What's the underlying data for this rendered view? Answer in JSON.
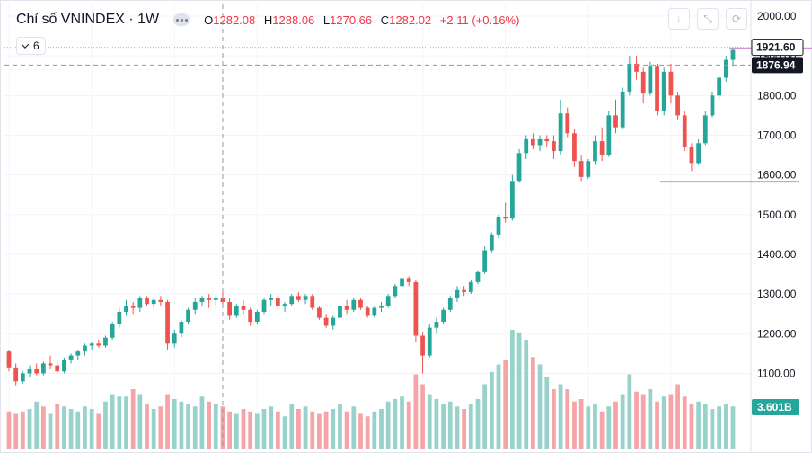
{
  "header": {
    "title": "Chỉ số VNINDEX · 1W",
    "ohlc": [
      {
        "label": "O",
        "value": "1282.08"
      },
      {
        "label": "H",
        "value": "1288.06"
      },
      {
        "label": "L",
        "value": "1270.66"
      },
      {
        "label": "C",
        "value": "1282.02"
      }
    ],
    "change": "+2.11 (+0.16%)",
    "indicator_count": "6",
    "tools": [
      {
        "name": "download-icon",
        "glyph": "↓"
      },
      {
        "name": "fullscreen-icon",
        "glyph": "⤡"
      },
      {
        "name": "refresh-icon",
        "glyph": "⟳"
      }
    ]
  },
  "colors": {
    "up": "#26a69a",
    "down": "#ef5350",
    "volume_up": "#99d2ca",
    "volume_down": "#f5a5a8",
    "annotation": "#ce93d8",
    "last_price_bg": "#131722",
    "resistance_bg": "#ffffff",
    "volume_label_bg": "#26a69a"
  },
  "chart_data": {
    "type": "candlestick",
    "y_ticks": [
      1100,
      1200,
      1300,
      1400,
      1500,
      1600,
      1700,
      1800,
      1900,
      2000
    ],
    "y_tick_labels": [
      "1100.00",
      "1200.00",
      "1300.00",
      "1400.00",
      "1500.00",
      "1600.00",
      "1700.00",
      "1800.00",
      "1900.00",
      "2000.00"
    ],
    "ylim": [
      1025,
      2010
    ],
    "price_labels": [
      {
        "text": "1921.60",
        "value": 1921.6,
        "style": "resistance"
      },
      {
        "text": "1876.94",
        "value": 1876.94,
        "style": "last"
      }
    ],
    "volume_label": "3.601B",
    "horizontal_levels": [
      {
        "value": 1919,
        "from": 105,
        "to": 116
      },
      {
        "value": 1583,
        "from": 95,
        "to": 114
      }
    ],
    "crosshair": {
      "x_index": 31,
      "y_value": 1876.94
    },
    "candles": [
      [
        1155,
        1160,
        1105,
        1115
      ],
      [
        1115,
        1125,
        1070,
        1080
      ],
      [
        1080,
        1105,
        1075,
        1100
      ],
      [
        1100,
        1120,
        1090,
        1110
      ],
      [
        1110,
        1125,
        1095,
        1100
      ],
      [
        1100,
        1130,
        1095,
        1125
      ],
      [
        1125,
        1145,
        1110,
        1120
      ],
      [
        1120,
        1130,
        1100,
        1105
      ],
      [
        1105,
        1140,
        1100,
        1135
      ],
      [
        1135,
        1150,
        1125,
        1145
      ],
      [
        1145,
        1160,
        1135,
        1155
      ],
      [
        1155,
        1175,
        1145,
        1170
      ],
      [
        1170,
        1180,
        1160,
        1175
      ],
      [
        1175,
        1185,
        1165,
        1170
      ],
      [
        1170,
        1195,
        1165,
        1190
      ],
      [
        1190,
        1230,
        1185,
        1225
      ],
      [
        1225,
        1265,
        1215,
        1255
      ],
      [
        1255,
        1285,
        1245,
        1270
      ],
      [
        1270,
        1280,
        1250,
        1265
      ],
      [
        1265,
        1295,
        1255,
        1290
      ],
      [
        1290,
        1295,
        1270,
        1275
      ],
      [
        1275,
        1290,
        1265,
        1285
      ],
      [
        1285,
        1295,
        1270,
        1280
      ],
      [
        1280,
        1285,
        1160,
        1175
      ],
      [
        1175,
        1210,
        1165,
        1200
      ],
      [
        1200,
        1235,
        1190,
        1230
      ],
      [
        1230,
        1265,
        1225,
        1260
      ],
      [
        1260,
        1290,
        1250,
        1280
      ],
      [
        1280,
        1295,
        1270,
        1290
      ],
      [
        1290,
        1300,
        1265,
        1285
      ],
      [
        1285,
        1295,
        1270,
        1290
      ],
      [
        1290,
        1305,
        1275,
        1280
      ],
      [
        1280,
        1290,
        1235,
        1245
      ],
      [
        1245,
        1275,
        1240,
        1270
      ],
      [
        1270,
        1285,
        1250,
        1260
      ],
      [
        1260,
        1265,
        1220,
        1230
      ],
      [
        1230,
        1260,
        1225,
        1255
      ],
      [
        1255,
        1290,
        1250,
        1285
      ],
      [
        1285,
        1300,
        1270,
        1290
      ],
      [
        1290,
        1295,
        1265,
        1270
      ],
      [
        1270,
        1280,
        1255,
        1275
      ],
      [
        1275,
        1300,
        1270,
        1295
      ],
      [
        1295,
        1305,
        1280,
        1285
      ],
      [
        1285,
        1300,
        1275,
        1295
      ],
      [
        1295,
        1300,
        1260,
        1265
      ],
      [
        1265,
        1270,
        1235,
        1240
      ],
      [
        1240,
        1250,
        1215,
        1220
      ],
      [
        1220,
        1245,
        1210,
        1240
      ],
      [
        1240,
        1275,
        1235,
        1270
      ],
      [
        1270,
        1285,
        1250,
        1260
      ],
      [
        1260,
        1290,
        1255,
        1285
      ],
      [
        1285,
        1290,
        1260,
        1265
      ],
      [
        1265,
        1270,
        1240,
        1245
      ],
      [
        1245,
        1270,
        1240,
        1265
      ],
      [
        1265,
        1280,
        1255,
        1270
      ],
      [
        1270,
        1300,
        1265,
        1295
      ],
      [
        1295,
        1325,
        1290,
        1320
      ],
      [
        1320,
        1345,
        1315,
        1340
      ],
      [
        1340,
        1345,
        1320,
        1330
      ],
      [
        1330,
        1335,
        1180,
        1195
      ],
      [
        1195,
        1205,
        1100,
        1145
      ],
      [
        1145,
        1225,
        1140,
        1215
      ],
      [
        1215,
        1240,
        1200,
        1230
      ],
      [
        1230,
        1265,
        1225,
        1260
      ],
      [
        1260,
        1295,
        1255,
        1290
      ],
      [
        1290,
        1320,
        1280,
        1310
      ],
      [
        1310,
        1320,
        1295,
        1305
      ],
      [
        1305,
        1335,
        1300,
        1330
      ],
      [
        1330,
        1360,
        1325,
        1355
      ],
      [
        1355,
        1420,
        1350,
        1410
      ],
      [
        1410,
        1455,
        1405,
        1450
      ],
      [
        1450,
        1500,
        1440,
        1495
      ],
      [
        1495,
        1530,
        1480,
        1490
      ],
      [
        1490,
        1600,
        1485,
        1585
      ],
      [
        1585,
        1665,
        1580,
        1655
      ],
      [
        1655,
        1700,
        1640,
        1690
      ],
      [
        1690,
        1705,
        1665,
        1675
      ],
      [
        1675,
        1700,
        1660,
        1690
      ],
      [
        1690,
        1700,
        1670,
        1685
      ],
      [
        1685,
        1700,
        1640,
        1660
      ],
      [
        1660,
        1790,
        1650,
        1755
      ],
      [
        1755,
        1770,
        1695,
        1705
      ],
      [
        1705,
        1715,
        1620,
        1635
      ],
      [
        1635,
        1650,
        1585,
        1595
      ],
      [
        1595,
        1640,
        1590,
        1635
      ],
      [
        1635,
        1700,
        1625,
        1685
      ],
      [
        1685,
        1720,
        1635,
        1650
      ],
      [
        1650,
        1760,
        1645,
        1750
      ],
      [
        1750,
        1790,
        1705,
        1720
      ],
      [
        1720,
        1820,
        1715,
        1810
      ],
      [
        1810,
        1900,
        1800,
        1880
      ],
      [
        1880,
        1900,
        1840,
        1860
      ],
      [
        1860,
        1870,
        1780,
        1805
      ],
      [
        1805,
        1885,
        1800,
        1875
      ],
      [
        1875,
        1880,
        1750,
        1760
      ],
      [
        1760,
        1870,
        1750,
        1860
      ],
      [
        1860,
        1880,
        1780,
        1800
      ],
      [
        1800,
        1810,
        1740,
        1750
      ],
      [
        1750,
        1760,
        1660,
        1670
      ],
      [
        1670,
        1680,
        1610,
        1630
      ],
      [
        1630,
        1690,
        1625,
        1680
      ],
      [
        1680,
        1760,
        1675,
        1750
      ],
      [
        1750,
        1810,
        1745,
        1800
      ],
      [
        1800,
        1850,
        1790,
        1845
      ],
      [
        1845,
        1900,
        1835,
        1890
      ],
      [
        1890,
        1920,
        1875,
        1915
      ]
    ],
    "volumes": [
      [
        0.75,
        0
      ],
      [
        0.7,
        0
      ],
      [
        0.75,
        0
      ],
      [
        0.8,
        1
      ],
      [
        0.95,
        1
      ],
      [
        0.85,
        0
      ],
      [
        0.7,
        1
      ],
      [
        0.9,
        0
      ],
      [
        0.85,
        1
      ],
      [
        0.8,
        1
      ],
      [
        0.75,
        1
      ],
      [
        0.85,
        1
      ],
      [
        0.8,
        1
      ],
      [
        0.7,
        0
      ],
      [
        0.95,
        1
      ],
      [
        1.1,
        1
      ],
      [
        1.05,
        1
      ],
      [
        1.05,
        1
      ],
      [
        1.2,
        0
      ],
      [
        1.1,
        1
      ],
      [
        0.9,
        0
      ],
      [
        0.8,
        1
      ],
      [
        0.85,
        0
      ],
      [
        1.1,
        0
      ],
      [
        1.0,
        1
      ],
      [
        0.95,
        1
      ],
      [
        0.9,
        1
      ],
      [
        0.85,
        1
      ],
      [
        1.05,
        1
      ],
      [
        0.95,
        0
      ],
      [
        0.9,
        1
      ],
      [
        0.85,
        0
      ],
      [
        0.75,
        0
      ],
      [
        0.7,
        1
      ],
      [
        0.8,
        0
      ],
      [
        0.75,
        0
      ],
      [
        0.7,
        1
      ],
      [
        0.8,
        1
      ],
      [
        0.85,
        1
      ],
      [
        0.75,
        0
      ],
      [
        0.65,
        1
      ],
      [
        0.9,
        1
      ],
      [
        0.8,
        0
      ],
      [
        0.85,
        1
      ],
      [
        0.75,
        0
      ],
      [
        0.7,
        0
      ],
      [
        0.75,
        0
      ],
      [
        0.8,
        1
      ],
      [
        0.9,
        1
      ],
      [
        0.75,
        0
      ],
      [
        0.85,
        1
      ],
      [
        0.7,
        0
      ],
      [
        0.65,
        0
      ],
      [
        0.75,
        1
      ],
      [
        0.8,
        1
      ],
      [
        0.95,
        1
      ],
      [
        1.0,
        1
      ],
      [
        1.05,
        1
      ],
      [
        0.95,
        0
      ],
      [
        1.5,
        0
      ],
      [
        1.3,
        0
      ],
      [
        1.1,
        1
      ],
      [
        1.0,
        1
      ],
      [
        0.9,
        1
      ],
      [
        0.95,
        1
      ],
      [
        0.85,
        1
      ],
      [
        0.8,
        0
      ],
      [
        0.9,
        1
      ],
      [
        1.0,
        1
      ],
      [
        1.3,
        1
      ],
      [
        1.55,
        1
      ],
      [
        1.7,
        1
      ],
      [
        1.8,
        0
      ],
      [
        2.4,
        1
      ],
      [
        2.35,
        1
      ],
      [
        2.2,
        1
      ],
      [
        1.85,
        0
      ],
      [
        1.7,
        1
      ],
      [
        1.45,
        1
      ],
      [
        1.2,
        0
      ],
      [
        1.3,
        1
      ],
      [
        1.2,
        0
      ],
      [
        0.95,
        0
      ],
      [
        1.0,
        0
      ],
      [
        0.85,
        1
      ],
      [
        0.9,
        1
      ],
      [
        0.75,
        0
      ],
      [
        0.85,
        1
      ],
      [
        0.95,
        0
      ],
      [
        1.1,
        1
      ],
      [
        1.5,
        1
      ],
      [
        1.15,
        0
      ],
      [
        1.1,
        0
      ],
      [
        1.2,
        1
      ],
      [
        0.95,
        0
      ],
      [
        1.05,
        1
      ],
      [
        1.1,
        0
      ],
      [
        1.3,
        0
      ],
      [
        1.05,
        0
      ],
      [
        0.9,
        0
      ],
      [
        0.95,
        1
      ],
      [
        0.9,
        1
      ],
      [
        0.8,
        1
      ],
      [
        0.85,
        1
      ],
      [
        0.9,
        1
      ],
      [
        0.85,
        1
      ]
    ]
  }
}
